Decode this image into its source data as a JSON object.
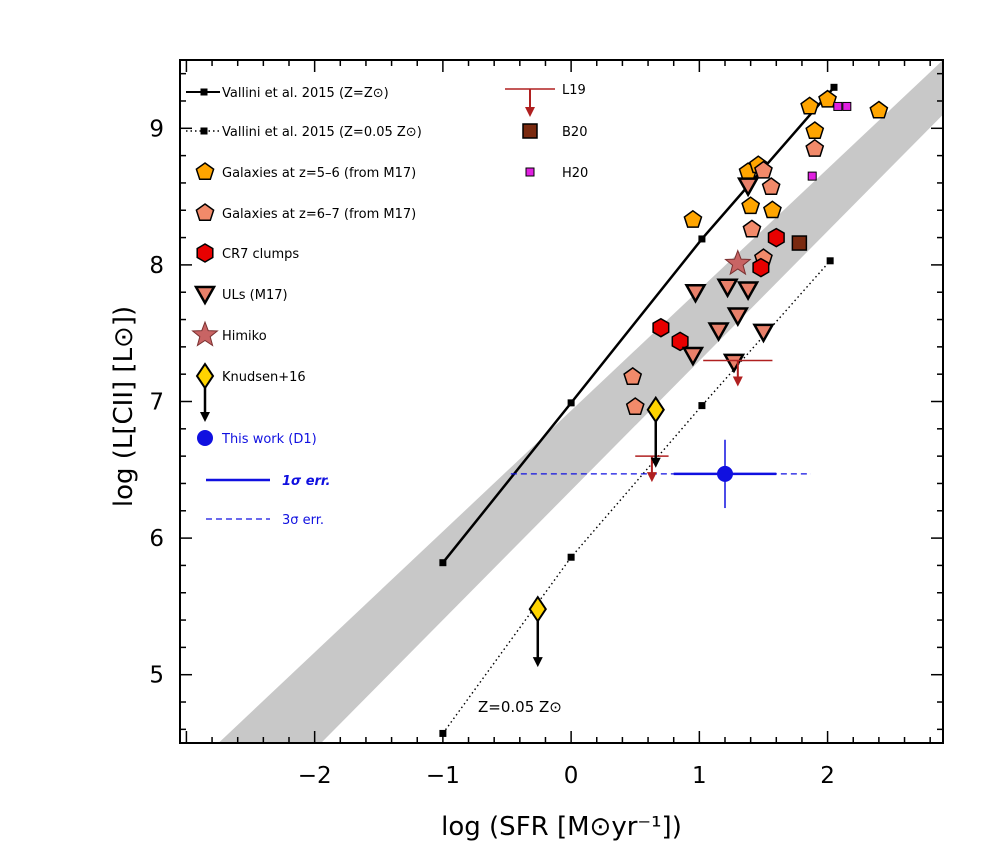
{
  "chart_data": {
    "type": "scatter",
    "title": "",
    "xlabel": "log (SFR [M⊙yr⁻¹])",
    "ylabel": "log (L[CII] [L⊙])",
    "xlim": [
      -3.05,
      2.9
    ],
    "ylim": [
      4.5,
      9.5
    ],
    "x_ticks": [
      "−2",
      "−1",
      "0",
      "1",
      "2"
    ],
    "y_ticks": [
      "5",
      "6",
      "7",
      "8",
      "9"
    ],
    "grid": false,
    "legend_position": "top-left",
    "colors": {
      "band": "#c8c8c8",
      "orange": "#ffa500",
      "salmon": "#f28a6a",
      "red": "#e80000",
      "ul": "#e8806a",
      "himiko": "#c86464",
      "knudsen": "#ffd400",
      "blue": "#1010e0",
      "l19": "#b02020",
      "b20": "#7a2a10",
      "h20": "#e020e0"
    },
    "band": {
      "name": "",
      "lower_edge": [
        [
          -1.95,
          4.5
        ],
        [
          2.9,
          9.1
        ]
      ],
      "upper_edge": [
        [
          -2.75,
          4.5
        ],
        [
          2.9,
          9.5
        ]
      ]
    },
    "series": [
      {
        "name": "Vallini et al. 2015 (Z=Z⊙)",
        "style": "solid-line-square",
        "points": [
          [
            -1.0,
            5.82
          ],
          [
            0.0,
            6.99
          ],
          [
            1.02,
            8.19
          ],
          [
            2.05,
            9.3
          ]
        ]
      },
      {
        "name": "Vallini et al. 2015 (Z=0.05 Z⊙)",
        "style": "dotted-line-square",
        "points": [
          [
            -1.0,
            4.57
          ],
          [
            0.0,
            5.86
          ],
          [
            1.02,
            6.97
          ],
          [
            2.02,
            8.03
          ]
        ]
      },
      {
        "name": "Galaxies at z=5–6 (from M17)",
        "marker": "pentagon-orange",
        "points": [
          [
            0.95,
            8.33
          ],
          [
            1.38,
            8.68
          ],
          [
            1.46,
            8.73
          ],
          [
            1.4,
            8.43
          ],
          [
            1.57,
            8.4
          ],
          [
            1.86,
            9.16
          ],
          [
            2.0,
            9.21
          ],
          [
            1.9,
            8.98
          ],
          [
            2.4,
            9.13
          ]
        ]
      },
      {
        "name": "Galaxies at z=6–7 (from M17)",
        "marker": "pentagon-salmon",
        "points": [
          [
            1.5,
            8.69
          ],
          [
            1.56,
            8.57
          ],
          [
            1.41,
            8.26
          ],
          [
            1.9,
            8.85
          ],
          [
            1.5,
            8.05
          ],
          [
            0.48,
            7.18
          ],
          [
            0.5,
            6.96
          ]
        ]
      },
      {
        "name": "CR7 clumps",
        "marker": "hexagon-red",
        "points": [
          [
            1.6,
            8.2
          ],
          [
            1.48,
            7.98
          ],
          [
            0.7,
            7.54
          ],
          [
            0.85,
            7.44
          ]
        ]
      },
      {
        "name": "ULs (M17)",
        "marker": "triangle-down",
        "points": [
          [
            1.38,
            8.58
          ],
          [
            1.22,
            7.84
          ],
          [
            0.97,
            7.8
          ],
          [
            1.38,
            7.82
          ],
          [
            1.3,
            7.63
          ],
          [
            1.15,
            7.52
          ],
          [
            1.5,
            7.51
          ],
          [
            0.95,
            7.34
          ],
          [
            1.27,
            7.29
          ]
        ]
      },
      {
        "name": "Himiko",
        "marker": "star",
        "points": [
          [
            1.3,
            8.01
          ]
        ]
      },
      {
        "name": "Knudsen+16",
        "marker": "diamond-upper-limit",
        "points": [
          [
            0.66,
            6.94
          ],
          [
            -0.26,
            5.48
          ]
        ]
      },
      {
        "name": "This work (D1)",
        "marker": "circle-blue",
        "points": [
          [
            1.2,
            6.47
          ]
        ],
        "x_err_1sigma": [
          0.8,
          1.6
        ],
        "y_err_1sigma": [
          6.22,
          6.72
        ],
        "x_err_3sigma": [
          -0.47,
          1.87
        ]
      },
      {
        "name": "L19",
        "marker": "upper-limit-cross",
        "points": [
          [
            0.63,
            6.6
          ],
          [
            1.3,
            7.3
          ]
        ],
        "x_err": [
          [
            0.5,
            0.76
          ],
          [
            1.03,
            1.57
          ]
        ]
      },
      {
        "name": "B20",
        "marker": "square-brown",
        "points": [
          [
            1.78,
            8.16
          ]
        ]
      },
      {
        "name": "H20",
        "marker": "square-magenta",
        "points": [
          [
            2.08,
            9.16
          ],
          [
            2.15,
            9.16
          ],
          [
            1.88,
            8.65
          ]
        ]
      }
    ],
    "legend": {
      "left": [
        {
          "label": "Vallini et al. 2015 (Z=Z⊙)",
          "key": "vallini_solar"
        },
        {
          "label": "Vallini et al. 2015 (Z=0.05 Z⊙)",
          "key": "vallini_low"
        },
        {
          "label": "Galaxies at z=5–6 (from M17)",
          "key": "gal56"
        },
        {
          "label": "Galaxies at z=6–7 (from M17)",
          "key": "gal67"
        },
        {
          "label": "CR7 clumps",
          "key": "cr7"
        },
        {
          "label": "ULs (M17)",
          "key": "uls"
        },
        {
          "label": "Himiko",
          "key": "himiko"
        },
        {
          "label": "Knudsen+16",
          "key": "knudsen"
        },
        {
          "label": "This work (D1)",
          "key": "thiswork"
        },
        {
          "label": "1σ err.",
          "key": "err1"
        },
        {
          "label": "3σ err.",
          "key": "err3"
        }
      ],
      "right": [
        {
          "label": "L19",
          "key": "l19"
        },
        {
          "label": "B20",
          "key": "b20"
        },
        {
          "label": "H20",
          "key": "h20"
        }
      ]
    },
    "annotations": [
      {
        "text": "Z=0.05 Z⊙",
        "x": -1.0,
        "y": 4.75
      }
    ]
  }
}
